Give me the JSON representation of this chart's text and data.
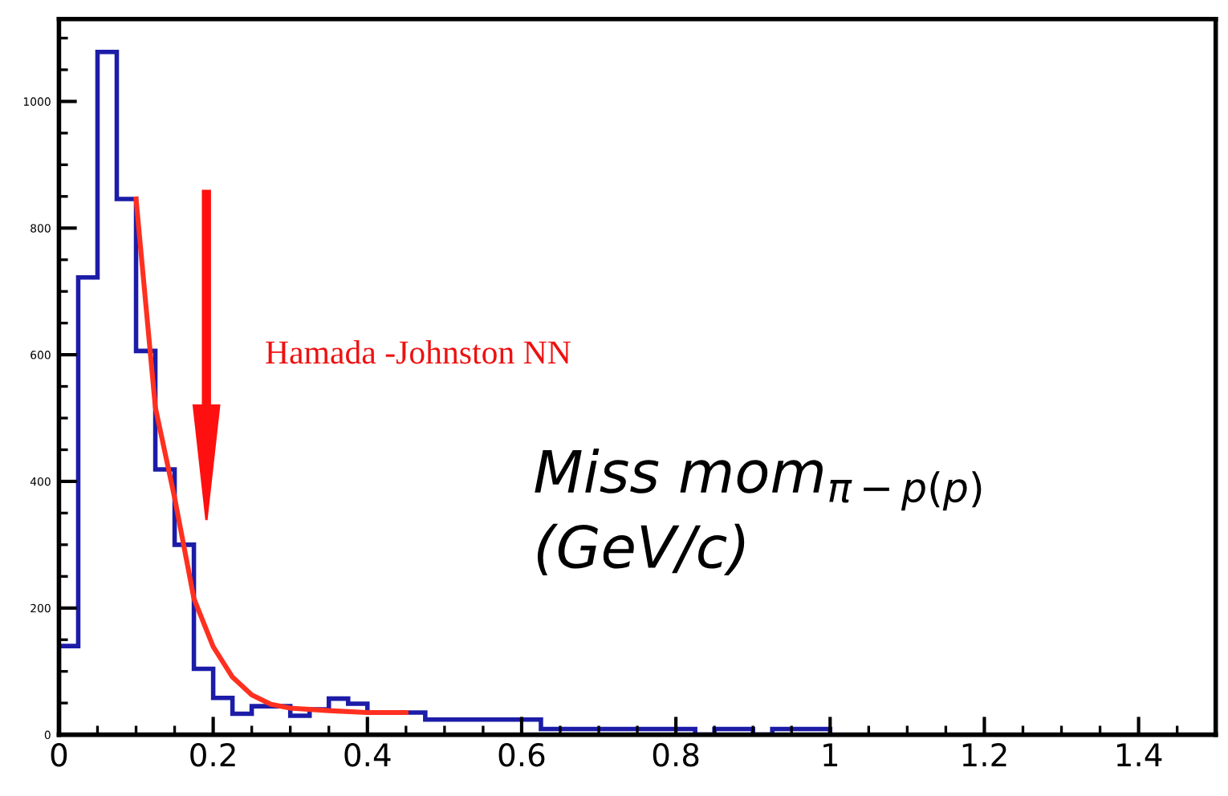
{
  "chart_data": {
    "type": "histogram",
    "xlabel": "Miss mom$_{π−p(p)}$\n(GeV/c)",
    "bins": [
      0,
      0.025,
      0.05,
      0.075,
      0.1,
      0.125,
      0.15,
      0.175,
      0.2,
      0.225,
      0.25,
      0.275,
      0.3,
      0.325,
      0.35,
      0.375,
      0.4,
      0.425,
      0.45,
      0.475,
      0.5,
      0.525,
      0.55,
      0.575,
      0.6,
      0.625,
      0.65,
      0.675,
      0.7,
      0.725,
      0.75,
      0.775,
      0.8,
      0.825,
      0.85,
      0.875,
      0.9,
      0.925,
      0.95,
      0.975,
      1.0
    ],
    "values": [
      140,
      722,
      1078,
      846,
      606,
      419,
      300,
      104,
      58,
      33,
      45,
      45,
      30,
      40,
      57,
      49,
      35,
      35,
      35,
      24,
      24,
      24,
      24,
      24,
      24,
      9,
      9,
      9,
      9,
      9,
      9,
      9,
      9,
      0,
      9,
      9,
      0,
      9,
      9,
      9
    ],
    "color": "#1c1ca8",
    "series": [
      {
        "type": "line",
        "color": "#ff3020",
        "x": [
          0.1,
          0.125,
          0.15,
          0.175,
          0.2,
          0.225,
          0.25,
          0.275,
          0.3,
          0.35,
          0.4,
          0.45
        ],
        "values": [
          846,
          517,
          374,
          215,
          139,
          91,
          63,
          48,
          42,
          38,
          35,
          35
        ]
      }
    ],
    "annotations": [
      "Hamada -Johnston NN"
    ],
    "xlim": [
      0,
      1.5
    ],
    "ylim": [
      0,
      1130
    ],
    "xticks": [
      0,
      {
        "value": 0.05,
        "label": null
      },
      {
        "value": 0.1,
        "label": null
      },
      {
        "value": 0.15,
        "label": null
      },
      0.2,
      {
        "value": 0.25,
        "label": null
      },
      {
        "value": 0.3,
        "label": null
      },
      {
        "value": 0.35,
        "label": null
      },
      0.4,
      {
        "value": 0.45,
        "label": null
      },
      {
        "value": 0.5,
        "label": null
      },
      {
        "value": 0.55,
        "label": null
      },
      0.6,
      {
        "value": 0.65,
        "label": null
      },
      {
        "value": 0.7,
        "label": null
      },
      {
        "value": 0.75,
        "label": null
      },
      0.8,
      {
        "value": 0.85,
        "label": null
      },
      {
        "value": 0.9,
        "label": null
      },
      {
        "value": 0.95,
        "label": null
      },
      1,
      {
        "value": 1.05,
        "label": null
      },
      {
        "value": 1.1,
        "label": null
      },
      {
        "value": 1.15,
        "label": null
      },
      1.2,
      {
        "value": 1.25,
        "label": null
      },
      {
        "value": 1.3,
        "label": null
      },
      {
        "value": 1.35,
        "label": null
      },
      1.4,
      {
        "value": 1.45,
        "label": null
      }
    ],
    "yticks": [
      0,
      {
        "value": 50,
        "label": null
      },
      {
        "value": 100,
        "label": null
      },
      {
        "value": 150,
        "label": null
      },
      200,
      {
        "value": 250,
        "label": null
      },
      {
        "value": 300,
        "label": null
      },
      {
        "value": 350,
        "label": null
      },
      400,
      {
        "value": 450,
        "label": null
      },
      {
        "value": 500,
        "label": null
      },
      {
        "value": 550,
        "label": null
      },
      600,
      {
        "value": 650,
        "label": null
      },
      {
        "value": 700,
        "label": null
      },
      {
        "value": 750,
        "label": null
      },
      800,
      {
        "value": 850,
        "label": null
      },
      {
        "value": 900,
        "label": null
      },
      {
        "value": 950,
        "label": null
      },
      1000,
      {
        "value": 1050,
        "label": null
      },
      {
        "value": 1100,
        "label": null
      }
    ],
    "grid": false,
    "legend": false
  }
}
